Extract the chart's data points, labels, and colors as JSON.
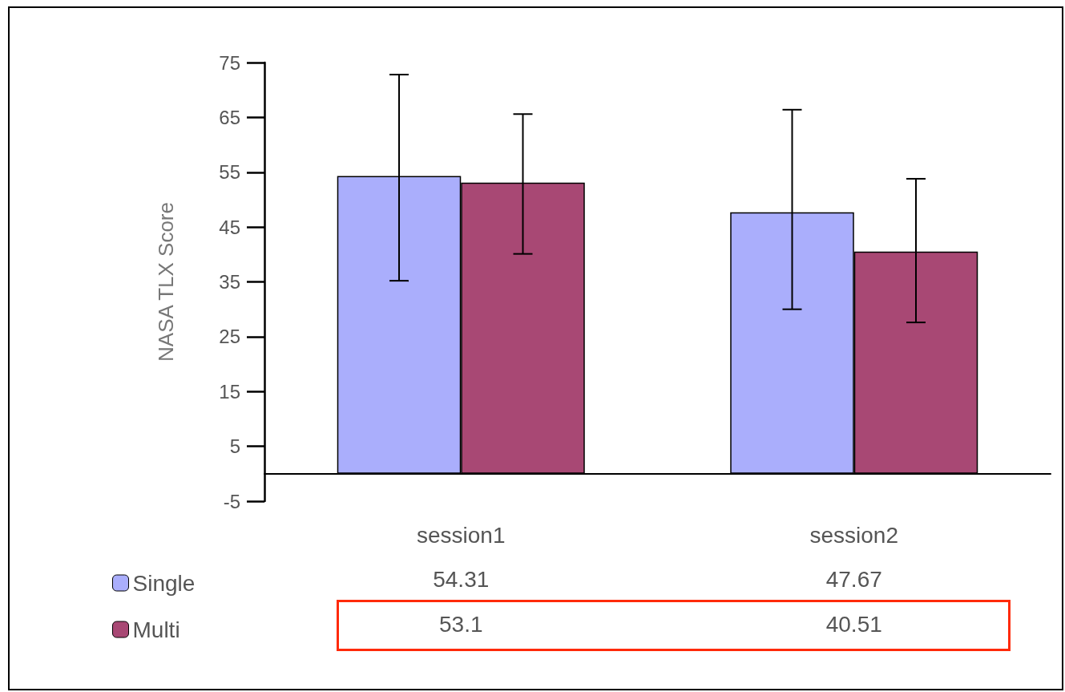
{
  "chart_data": {
    "type": "bar",
    "ylabel": "NASA TLX Score",
    "categories": [
      "session1",
      "session2"
    ],
    "series": [
      {
        "name": "Single",
        "color": "#aaaefc",
        "values": [
          54.31,
          47.67
        ],
        "value_labels": [
          "54.31",
          "47.67"
        ],
        "errors": [
          [
            35.2,
            72.8
          ],
          [
            30.0,
            66.4
          ]
        ]
      },
      {
        "name": "Multi",
        "color": "#a84874",
        "values": [
          53.1,
          40.51
        ],
        "value_labels": [
          "53.1",
          "40.51"
        ],
        "errors": [
          [
            40.1,
            65.6
          ],
          [
            27.6,
            53.8
          ]
        ]
      }
    ],
    "ylim": [
      -5,
      75
    ],
    "yticks": [
      -5,
      5,
      15,
      25,
      35,
      45,
      55,
      65,
      75
    ],
    "grid": false,
    "legend": "bottom left"
  }
}
